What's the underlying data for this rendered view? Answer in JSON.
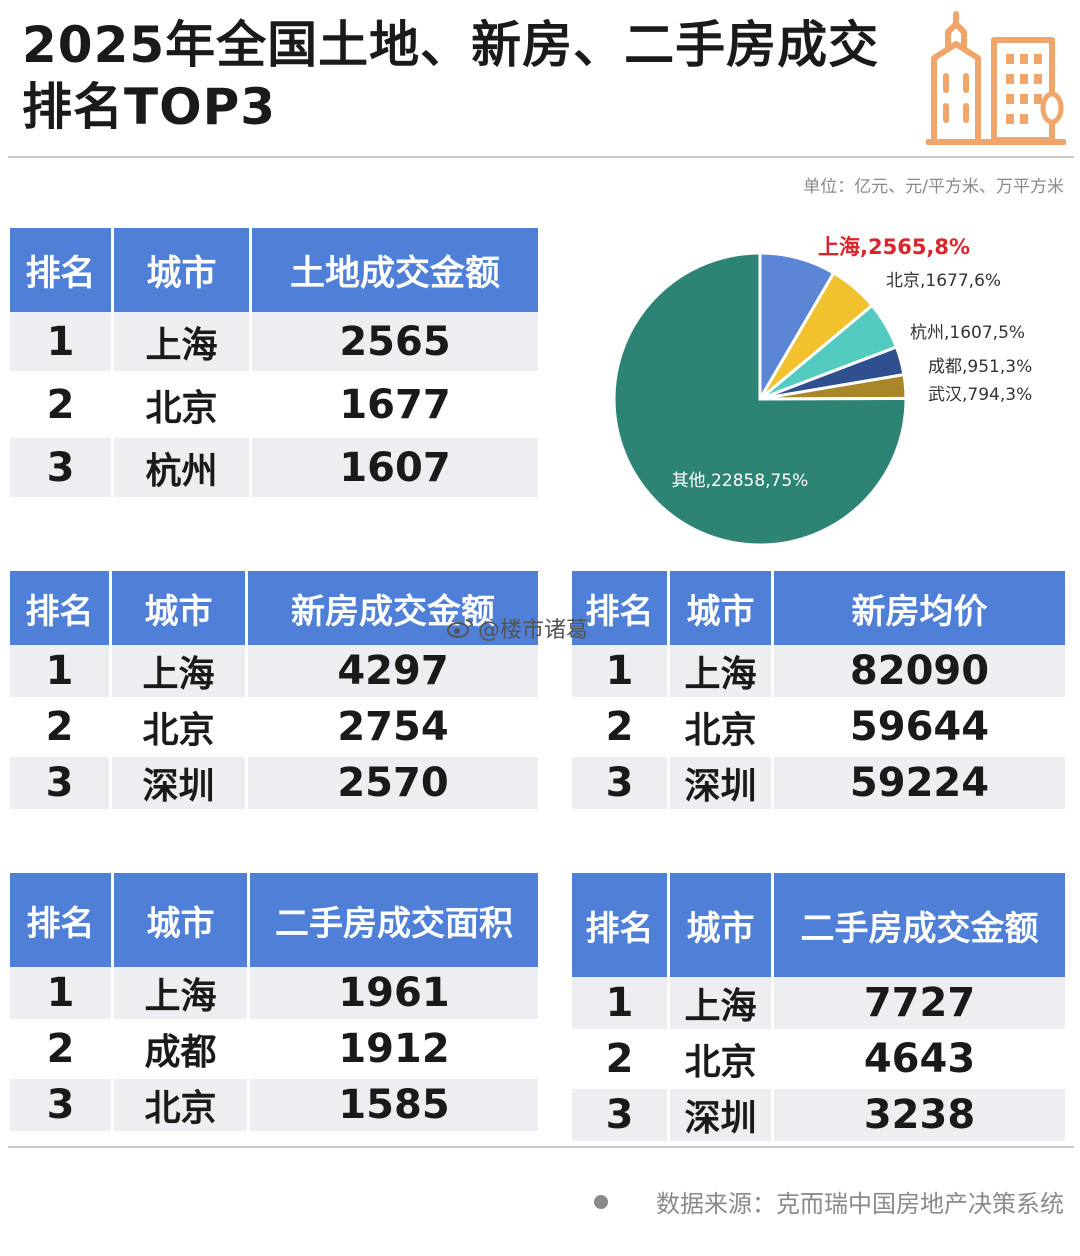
{
  "title": "2025年全国土地、新房、二手房成交排名TOP3",
  "unit": "单位：亿元、元/平方米、万平方米",
  "watermark": "@楼市诸葛",
  "source": "数据来源：克而瑞中国房地产决策系统",
  "icons": {
    "header": "building-icon",
    "watermark": "weibo-icon",
    "source": "dot-icon"
  },
  "colors": {
    "header_blue": "#4f7fd6",
    "row_gray": "#eceef2",
    "icon_orange": "#f0a56a"
  },
  "tables": {
    "land": {
      "headers": [
        "排名",
        "城市",
        "土地成交金额"
      ],
      "rows": [
        {
          "rank": "1",
          "city": "上海",
          "value": "2565"
        },
        {
          "rank": "2",
          "city": "北京",
          "value": "1677"
        },
        {
          "rank": "3",
          "city": "杭州",
          "value": "1607"
        }
      ]
    },
    "new_amount": {
      "headers": [
        "排名",
        "城市",
        "新房成交金额"
      ],
      "rows": [
        {
          "rank": "1",
          "city": "上海",
          "value": "4297"
        },
        {
          "rank": "2",
          "city": "北京",
          "value": "2754"
        },
        {
          "rank": "3",
          "city": "深圳",
          "value": "2570"
        }
      ]
    },
    "new_price": {
      "headers": [
        "排名",
        "城市",
        "新房均价"
      ],
      "rows": [
        {
          "rank": "1",
          "city": "上海",
          "value": "82090"
        },
        {
          "rank": "2",
          "city": "北京",
          "value": "59644"
        },
        {
          "rank": "3",
          "city": "深圳",
          "value": "59224"
        }
      ]
    },
    "second_area": {
      "headers": [
        "排名",
        "城市",
        "二手房成交面积"
      ],
      "rows": [
        {
          "rank": "1",
          "city": "上海",
          "value": "1961"
        },
        {
          "rank": "2",
          "city": "成都",
          "value": "1912"
        },
        {
          "rank": "3",
          "city": "北京",
          "value": "1585"
        }
      ]
    },
    "second_amount": {
      "headers": [
        "排名",
        "城市",
        "二手房成交金额"
      ],
      "rows": [
        {
          "rank": "1",
          "city": "上海",
          "value": "7727"
        },
        {
          "rank": "2",
          "city": "北京",
          "value": "4643"
        },
        {
          "rank": "3",
          "city": "深圳",
          "value": "3238"
        }
      ]
    }
  },
  "chart_data": {
    "type": "pie",
    "slices": [
      {
        "label": "上海,2565,8%",
        "name": "上海",
        "value": 2565,
        "percent": 8,
        "color": "#5b86d6",
        "highlight": true
      },
      {
        "label": "北京,1677,6%",
        "name": "北京",
        "value": 1677,
        "percent": 6,
        "color": "#f2c12e"
      },
      {
        "label": "杭州,1607,5%",
        "name": "杭州",
        "value": 1607,
        "percent": 5,
        "color": "#53cbc0"
      },
      {
        "label": "成都,951,3%",
        "name": "成都",
        "value": 951,
        "percent": 3,
        "color": "#2f4f8f"
      },
      {
        "label": "武汉,794,3%",
        "name": "武汉",
        "value": 794,
        "percent": 3,
        "color": "#a8862a"
      },
      {
        "label": "其他,22858,75%",
        "name": "其他",
        "value": 22858,
        "percent": 75,
        "color": "#2e8474"
      }
    ],
    "highlight_color": "#d9262c"
  }
}
